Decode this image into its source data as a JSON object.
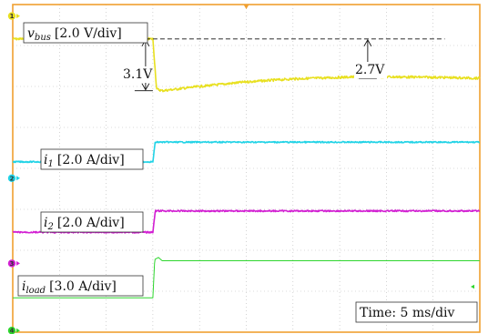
{
  "chart_data": {
    "type": "line",
    "x_divisions": 10,
    "y_divisions": 8,
    "grid": true,
    "colors": {
      "frame": "#f0a030",
      "grid": "#b8b8b8",
      "vbus": "#e8e020",
      "i1": "#22d3e6",
      "i2": "#d21fd2",
      "iload": "#2ed62e"
    },
    "channel_markers": [
      {
        "id": "1",
        "color": "#e8e020",
        "level_div": 0.35
      },
      {
        "id": "2",
        "color": "#22d3e6",
        "level_div": 5.3
      },
      {
        "id": "3",
        "color": "#d21fd2",
        "level_div": 7.9
      },
      {
        "id": "4",
        "color": "#2ed62e",
        "level_div": 9.95
      }
    ],
    "step_time_div": 3.0,
    "series": [
      {
        "key": "vbus",
        "label_main": "v",
        "label_sub": "bus",
        "label_scale": "[2.0 V/div]",
        "noise_div": 0.035,
        "points_div": [
          [
            0,
            1.05
          ],
          [
            3.0,
            1.05
          ],
          [
            3.08,
            2.58
          ],
          [
            3.2,
            2.63
          ],
          [
            4.0,
            2.5
          ],
          [
            5.0,
            2.36
          ],
          [
            6.0,
            2.27
          ],
          [
            7.5,
            2.2
          ],
          [
            9.0,
            2.22
          ],
          [
            10.0,
            2.25
          ]
        ]
      },
      {
        "key": "i1",
        "label_main": "i",
        "label_sub": "1",
        "label_scale": "[2.0 A/div]",
        "noise_div": 0.02,
        "points_div": [
          [
            0,
            4.8
          ],
          [
            3.0,
            4.8
          ],
          [
            3.05,
            4.2
          ],
          [
            10.0,
            4.2
          ]
        ]
      },
      {
        "key": "i2",
        "label_main": "i",
        "label_sub": "2",
        "label_scale": "[2.0 A/div]",
        "noise_div": 0.022,
        "points_div": [
          [
            0,
            6.95
          ],
          [
            3.0,
            6.95
          ],
          [
            3.05,
            6.3
          ],
          [
            10.0,
            6.3
          ]
        ]
      },
      {
        "key": "iload",
        "label_main": "i",
        "label_sub": "load",
        "label_scale": "[3.0 A/div]",
        "noise_div": 0.0,
        "points_div": [
          [
            0,
            8.95
          ],
          [
            3.0,
            8.95
          ],
          [
            3.04,
            7.78
          ],
          [
            3.12,
            7.72
          ],
          [
            3.2,
            7.82
          ],
          [
            10.0,
            7.82
          ]
        ]
      }
    ],
    "annotations": {
      "drop1": "3.1V",
      "drop2": "2.7V",
      "time_base": "Time: 5 ms/div"
    }
  }
}
